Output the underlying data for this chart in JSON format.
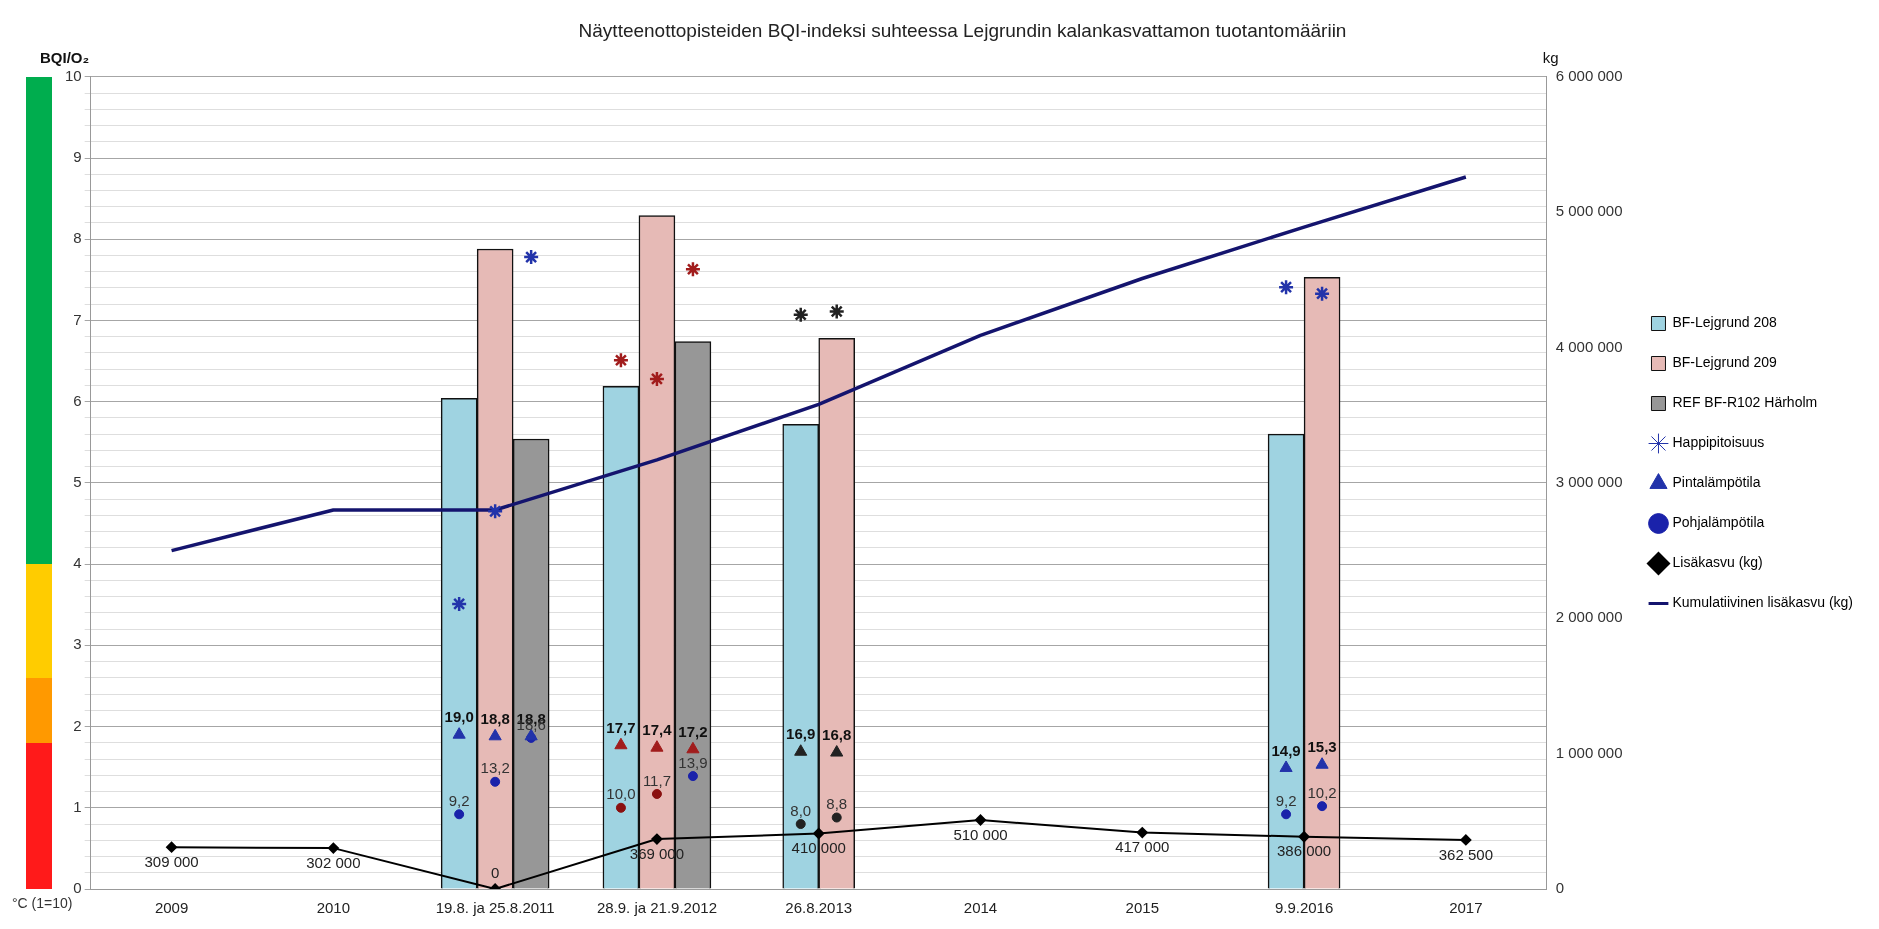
{
  "chart_data": {
    "type": "bar",
    "title": "Näytteenottopisteiden BQI-indeksi suhteessa Lejgrundin kalankasvattamon tuotantomääriin",
    "ylabel": "BQI/O₂",
    "y2label": "kg",
    "annotations": [
      "°C (1=10)",
      {
        "text": "19,0",
        "x": "19.8. ja 25.8.2011",
        "y": 1.9
      },
      {
        "text": "18,8",
        "x": "19.8. ja 25.8.2011",
        "y": 1.88
      },
      {
        "text": "18,8",
        "x": "19.8. ja 25.8.2011",
        "y": 1.88
      },
      {
        "text": "17,7",
        "x": "28.9. ja 21.9.2012",
        "y": 1.77
      },
      {
        "text": "17,4",
        "x": "28.9. ja 21.9.2012",
        "y": 1.74
      },
      {
        "text": "17,2",
        "x": "28.9. ja 21.9.2012",
        "y": 1.72
      },
      {
        "text": "16,9",
        "x": "26.8.2013",
        "y": 1.69
      },
      {
        "text": "16,8",
        "x": "26.8.2013",
        "y": 1.68
      },
      {
        "text": "14,9",
        "x": "9.9.2016",
        "y": 1.49
      },
      {
        "text": "15,3",
        "x": "9.9.2016",
        "y": 1.53
      },
      {
        "text": "9,2",
        "y": 0.92
      },
      {
        "text": "13,2",
        "x": "19.8. ja 25.8.2011",
        "y": 1.32
      },
      {
        "text": "18,6",
        "x": "19.8. ja 25.8.2011",
        "y": 1.86
      },
      {
        "text": "10,0",
        "y": 1.0
      },
      {
        "text": "11,7",
        "x": "28.9. ja 21.9.2012",
        "y": 1.17
      },
      {
        "text": "13,9",
        "y": 1.39
      },
      {
        "text": "8,0",
        "x": "26.8.2013",
        "y": 0.8
      },
      {
        "text": "8,8",
        "x": "26.8.2013",
        "y": 0.88
      },
      {
        "text": "9,2",
        "x": "9.9.2016",
        "y": 0.92
      },
      {
        "text": "10,2",
        "x": "9.9.2016",
        "y": 1.02
      }
    ],
    "categories": [
      "2009",
      "2010",
      "19.8. ja 25.8.2011",
      "28.9. ja 21.9.2012",
      "26.8.2013",
      "2014",
      "2015",
      "9.9.2016",
      "2017"
    ],
    "series": [
      {
        "name": "BF-Lejgrund 208",
        "color": "#9fd3e1",
        "values": [
          null,
          null,
          6.04,
          6.19,
          5.72,
          null,
          null,
          5.6,
          null
        ]
      },
      {
        "name": "BF-Lejgrund 209",
        "color": "#e6bab6",
        "values": [
          null,
          null,
          7.88,
          8.29,
          6.78,
          null,
          null,
          7.53,
          null
        ]
      },
      {
        "name": "REF BF-R102 Härholm",
        "color": "#979797",
        "values": [
          null,
          null,
          5.54,
          6.74,
          null,
          null,
          null,
          null,
          null
        ]
      },
      {
        "name": "Happipitoisuus",
        "type": "scatter",
        "marker": "cross",
        "color": "#2233aa",
        "x": [
          "19.8. ja 25.8.2011",
          "19.8. ja 25.8.2011",
          "19.8. ja 25.8.2011",
          "28.9. ja 21.9.2012",
          "28.9. ja 21.9.2012",
          "28.9. ja 21.9.2012",
          "26.8.2013",
          "26.8.2013",
          "9.9.2016",
          "9.9.2016"
        ],
        "values": [
          3.51,
          4.65,
          7.78,
          6.51,
          6.28,
          7.63,
          7.07,
          7.11,
          7.41,
          7.33
        ],
        "colors": [
          "#2233aa",
          "#2233aa",
          "#2233aa",
          "#a11c1c",
          "#a11c1c",
          "#a11c1c",
          "#222222",
          "#222222",
          "#2233aa",
          "#2233aa"
        ]
      },
      {
        "name": "Pintalämpötila",
        "type": "scatter",
        "marker": "triangle",
        "color": "#2233aa",
        "x": [
          "19.8. ja 25.8.2011",
          "19.8. ja 25.8.2011",
          "19.8. ja 25.8.2011",
          "28.9. ja 21.9.2012",
          "28.9. ja 21.9.2012",
          "28.9. ja 21.9.2012",
          "26.8.2013",
          "26.8.2013",
          "9.9.2016",
          "9.9.2016"
        ],
        "values": [
          1.9,
          1.88,
          1.88,
          1.77,
          1.74,
          1.72,
          1.69,
          1.68,
          1.49,
          1.53
        ],
        "colors": [
          "#2233aa",
          "#2233aa",
          "#2233aa",
          "#a11c1c",
          "#a11c1c",
          "#a11c1c",
          "#222222",
          "#222222",
          "#2233aa",
          "#2233aa"
        ]
      },
      {
        "name": "Pohjalämpötila",
        "type": "scatter",
        "marker": "circle",
        "color": "#1a22aa",
        "x": [
          "19.8. ja 25.8.2011",
          "19.8. ja 25.8.2011",
          "19.8. ja 25.8.2011",
          "28.9. ja 21.9.2012",
          "28.9. ja 21.9.2012",
          "28.9. ja 21.9.2012",
          "26.8.2013",
          "26.8.2013",
          "9.9.2016",
          "9.9.2016"
        ],
        "values": [
          0.92,
          1.32,
          1.86,
          1.0,
          1.17,
          1.39,
          0.8,
          0.88,
          0.92,
          1.02
        ],
        "colors": [
          "#1a22aa",
          "#1a22aa",
          "#1a22aa",
          "#8a1010",
          "#8a1010",
          "#1a22aa",
          "#222222",
          "#222222",
          "#1a22aa",
          "#1a22aa"
        ]
      },
      {
        "name": "Lisäkasvu (kg)",
        "type": "line",
        "axis": "y2",
        "marker": "diamond",
        "color": "#000000",
        "values": [
          309000,
          302000,
          0,
          369000,
          410000,
          510000,
          417000,
          386000,
          362500
        ],
        "value_labels": [
          "309 000",
          "302 000",
          "0",
          "369 000",
          "410 000",
          "510 000",
          "417 000",
          "386 000",
          "362 500"
        ]
      },
      {
        "name": "Kumulatiivinen lisäkasvu (kg)",
        "type": "line",
        "axis": "y2",
        "marker": "none",
        "color": "#14146e",
        "values": [
          2500000,
          2800000,
          2800000,
          3170000,
          3580000,
          4090000,
          4510000,
          4890000,
          5260000
        ]
      }
    ],
    "ylim": [
      0,
      10
    ],
    "yticks": [
      0,
      {
        "value": 0.2,
        "label": null
      },
      {
        "value": 0.4,
        "label": null
      },
      {
        "value": 0.6,
        "label": null
      },
      {
        "value": 0.8,
        "label": null
      },
      1,
      {
        "value": 1.2,
        "label": null
      },
      {
        "value": 1.4,
        "label": null
      },
      {
        "value": 1.6,
        "label": null
      },
      {
        "value": 1.8,
        "label": null
      },
      2,
      {
        "value": 2.2,
        "label": null
      },
      {
        "value": 2.4,
        "label": null
      },
      {
        "value": 2.6,
        "label": null
      },
      {
        "value": 2.8,
        "label": null
      },
      3,
      {
        "value": 3.2,
        "label": null
      },
      {
        "value": 3.4,
        "label": null
      },
      {
        "value": 3.6,
        "label": null
      },
      {
        "value": 3.8,
        "label": null
      },
      4,
      {
        "value": 4.2,
        "label": null
      },
      {
        "value": 4.4,
        "label": null
      },
      {
        "value": 4.6,
        "label": null
      },
      {
        "value": 4.8,
        "label": null
      },
      5,
      {
        "value": 5.2,
        "label": null
      },
      {
        "value": 5.4,
        "label": null
      },
      {
        "value": 5.6,
        "label": null
      },
      {
        "value": 5.8,
        "label": null
      },
      6,
      {
        "value": 6.2,
        "label": null
      },
      {
        "value": 6.4,
        "label": null
      },
      {
        "value": 6.6,
        "label": null
      },
      {
        "value": 6.8,
        "label": null
      },
      7,
      {
        "value": 7.2,
        "label": null
      },
      {
        "value": 7.4,
        "label": null
      },
      {
        "value": 7.6,
        "label": null
      },
      {
        "value": 7.8,
        "label": null
      },
      8,
      {
        "value": 8.2,
        "label": null
      },
      {
        "value": 8.4,
        "label": null
      },
      {
        "value": 8.6,
        "label": null
      },
      {
        "value": 8.8,
        "label": null
      },
      9,
      {
        "value": 9.2,
        "label": null
      },
      {
        "value": 9.4,
        "label": null
      },
      {
        "value": 9.6,
        "label": null
      },
      {
        "value": 9.8,
        "label": null
      },
      10
    ],
    "y2lim": [
      0,
      6000000
    ],
    "y2ticks": [
      0,
      {
        "value": 1000000,
        "label": "1 000 000"
      },
      {
        "value": 2000000,
        "label": "2 000 000"
      },
      {
        "value": 3000000,
        "label": "3 000 000"
      },
      {
        "value": 4000000,
        "label": "4 000 000"
      },
      {
        "value": 5000000,
        "label": "5 000 000"
      },
      {
        "value": 6000000,
        "label": "6 000 000"
      }
    ],
    "grid": "y",
    "legend": "right"
  }
}
